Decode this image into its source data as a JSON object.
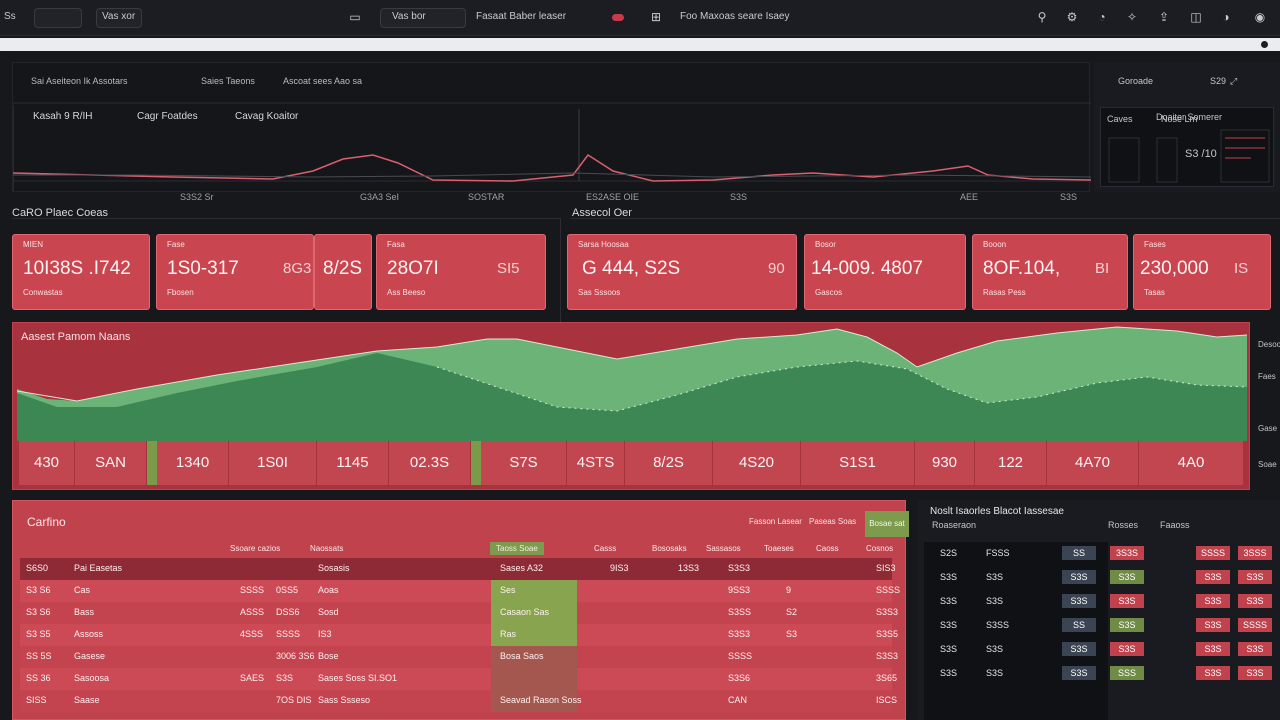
{
  "topbar": {
    "items": [
      "Ss",
      "Vas xor",
      "Vas bor",
      "Fasaat Baber leaser",
      "Foo Maxoas seare Isaey"
    ],
    "search_placeholder": "Vas bor"
  },
  "trend": {
    "header_labels": [
      "Sai Aseiteon Ik Assotars",
      "Saies Taeons",
      "Ascoat sees Aao sa"
    ],
    "legend": [
      "Kasah 9 R/IH",
      "Cagr Foatdes",
      "Cavag Koaitor"
    ],
    "ticks": [
      "S3S2 Sr",
      "G3A3 SeI",
      "SOSTAR",
      "ES2ASE OIE",
      "S3S",
      "AEE",
      "S3S"
    ],
    "right_labels": [
      "Goroade",
      "S29",
      "Caves",
      "Nose Lrn",
      "S3 /10",
      "Doaiter Somerer"
    ],
    "colors": {
      "line": "#d9606e",
      "grid": "#2b2c33"
    }
  },
  "sections": {
    "left_title": "CaRO Plaec Coeas",
    "right_title": "Assecol Oer"
  },
  "cards": [
    {
      "label": "MIEN",
      "value": "10I38S .I742",
      "suffix": "",
      "footer": "Conwastas"
    },
    {
      "label": "Fase",
      "value": "1S0-317",
      "suffix": "8G3",
      "footer": "Fbosen"
    },
    {
      "label": "",
      "value": "8/2S",
      "suffix": "",
      "footer": ""
    },
    {
      "label": "Fasa",
      "value": "28O7I",
      "suffix": "SI5",
      "footer": "Ass Beeso"
    },
    {
      "label": "Sarsa Hoosaa",
      "value": "G 444, S2S",
      "suffix": "90",
      "footer": "Sas Sssoos"
    },
    {
      "label": "Bosor",
      "value": "14-009. 4807",
      "suffix": "",
      "footer": "Gascos"
    },
    {
      "label": "Booon",
      "value": "8OF.104,",
      "suffix": "BI",
      "footer": "Rasas Pess"
    },
    {
      "label": "Fases",
      "value": "230,000",
      "suffix": "IS",
      "footer": "Tasas"
    }
  ],
  "area": {
    "title": "Aasest Pamom Naans",
    "values": [
      "430",
      "SAN",
      "1340",
      "1S0I",
      "1145",
      "02.3S",
      "S7S",
      "4STS",
      "8/2S",
      "4S20",
      "S1S1",
      "930",
      "122",
      "4A70",
      "4A0"
    ],
    "colors": {
      "fill_dark": "#3d8754",
      "fill_light": "#6bb377",
      "line": "#d8e9d8"
    }
  },
  "side_labels": [
    "Desoon",
    "Faes",
    "Gase",
    "Soae"
  ],
  "table": {
    "title": "Carfino",
    "buttons": [
      "Fasson Lasear",
      "Paseas Soas",
      "Bosae sat"
    ],
    "headers": [
      "Ssoare cazios",
      "Naossats",
      "Taoss Soae",
      "Casss",
      "Bososaks",
      "Sassasos",
      "Toaeses",
      "Caoss",
      "Cosnos"
    ],
    "rows": [
      [
        "S6S0",
        "Pai Easetas",
        "",
        "",
        "Sosasis",
        "Sases A32",
        "9IS3",
        "13S3",
        "S3S3",
        "",
        "",
        "SIS3"
      ],
      [
        "S3 S6",
        "Cas",
        "SSSS",
        "0SS5",
        "Aoas",
        "Ses",
        "",
        "",
        "9SS3",
        "9",
        "",
        "SSSS"
      ],
      [
        "S3 S6",
        "Bass",
        "ASSS",
        "DSS6",
        "Sosd",
        "Casaon Sas",
        "",
        "",
        "S3SS",
        "S2",
        "",
        "S3S3"
      ],
      [
        "S3 S5",
        "Assoss",
        "4SSS",
        "SSSS",
        "IS3",
        "Ras",
        "",
        "",
        "S3S3",
        "S3",
        "",
        "S3S5"
      ],
      [
        "SS 5S",
        "Gasese",
        "",
        "3006  3S6",
        "Bose",
        "Bosa Saos",
        "",
        "",
        "SSSS",
        "",
        "",
        "S3S3"
      ],
      [
        "SS 36",
        "Sasoosa",
        "SAES",
        "S3S",
        "Sases Soss  SI.SO1",
        "",
        "",
        "",
        "S3S6",
        "",
        "",
        "3S65"
      ],
      [
        "SISS",
        "Saase",
        "",
        "7OS  DIS",
        "Sass Ssseso",
        "Seavad Rason Soss",
        "",
        "",
        "CAN",
        "",
        "",
        "ISCS"
      ]
    ]
  },
  "rtable": {
    "title": "Noslt Isaorles Blacot Iassesae",
    "sub": [
      "Roaseraon",
      "Rosses",
      "Faaoss"
    ],
    "rows": [
      [
        "S2S",
        "FSSS",
        "SS",
        "3S3S",
        "SSSS",
        "3SSS"
      ],
      [
        "S3S",
        "S3S",
        "S3S",
        "S3S",
        "S3S",
        "S3S"
      ],
      [
        "S3S",
        "S3S",
        "S3S",
        "S3S",
        "S3S",
        "S3S"
      ],
      [
        "S3S",
        "S3SS",
        "SS",
        "S3S",
        "S3S",
        "SSSS"
      ],
      [
        "S3S",
        "S3S",
        "S3S",
        "S3S",
        "S3S",
        "S3S"
      ],
      [
        "S3S",
        "S3S",
        "S3S",
        "SSS",
        "S3S",
        "S3S"
      ]
    ]
  }
}
